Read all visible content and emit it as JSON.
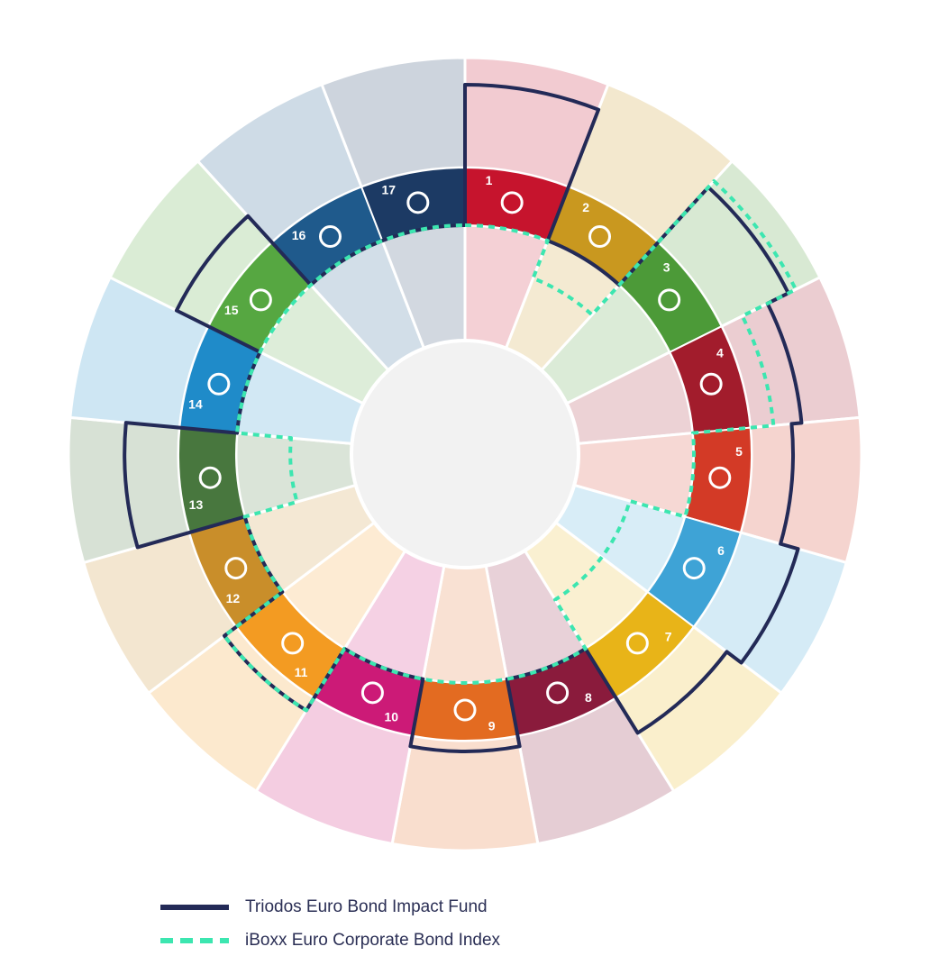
{
  "chart_data": {
    "type": "radial-bar",
    "series": [
      {
        "name": "Triodos Euro Bond Impact Fund",
        "color": "#232a57",
        "style": "solid",
        "values": [
          1.0,
          0.0,
          0.9,
          0.62,
          0.5,
          0.72,
          0.5,
          0.0,
          0.13,
          0.0,
          0.18,
          0.0,
          0.65,
          0.0,
          0.43,
          0.0,
          0.0
        ]
      },
      {
        "name": "iBoxx Euro Corporate Bond Index",
        "color": "#3ce6b0",
        "style": "dashed",
        "values": [
          0.0,
          -0.35,
          1.0,
          0.28,
          0.0,
          -0.5,
          -0.5,
          0.0,
          0.0,
          0.0,
          0.18,
          0.0,
          -0.47,
          0.0,
          0.0,
          0.0,
          0.0
        ]
      }
    ],
    "categories": [
      {
        "number": "1",
        "color": "#c6142d",
        "icon": "family-icon"
      },
      {
        "number": "2",
        "color": "#c9981f",
        "icon": "food-bowl-icon"
      },
      {
        "number": "3",
        "color": "#4c9a38",
        "icon": "heartbeat-icon"
      },
      {
        "number": "4",
        "color": "#a21c2c",
        "icon": "book-icon"
      },
      {
        "number": "5",
        "color": "#d33a26",
        "icon": "gender-icon"
      },
      {
        "number": "6",
        "color": "#3ea3d6",
        "icon": "water-drop-icon"
      },
      {
        "number": "7",
        "color": "#e8b418",
        "icon": "sun-icon"
      },
      {
        "number": "8",
        "color": "#8a1b3c",
        "icon": "growth-chart-icon"
      },
      {
        "number": "9",
        "color": "#e36b21",
        "icon": "cubes-icon"
      },
      {
        "number": "10",
        "color": "#cc1a77",
        "icon": "equality-arrows-icon"
      },
      {
        "number": "11",
        "color": "#f39b22",
        "icon": "city-icon"
      },
      {
        "number": "12",
        "color": "#c98e2a",
        "icon": "infinity-icon"
      },
      {
        "number": "13",
        "color": "#48773e",
        "icon": "eye-globe-icon"
      },
      {
        "number": "14",
        "color": "#1f8bc9",
        "icon": "fish-icon"
      },
      {
        "number": "15",
        "color": "#56a741",
        "icon": "tree-icon"
      },
      {
        "number": "16",
        "color": "#1f5a8c",
        "icon": "dove-icon"
      },
      {
        "number": "17",
        "color": "#1c3a64",
        "icon": "rings-icon"
      }
    ]
  },
  "legend": {
    "fund_label": "Triodos Euro Bond Impact Fund",
    "index_label": "iBoxx Euro Corporate Bond Index"
  }
}
